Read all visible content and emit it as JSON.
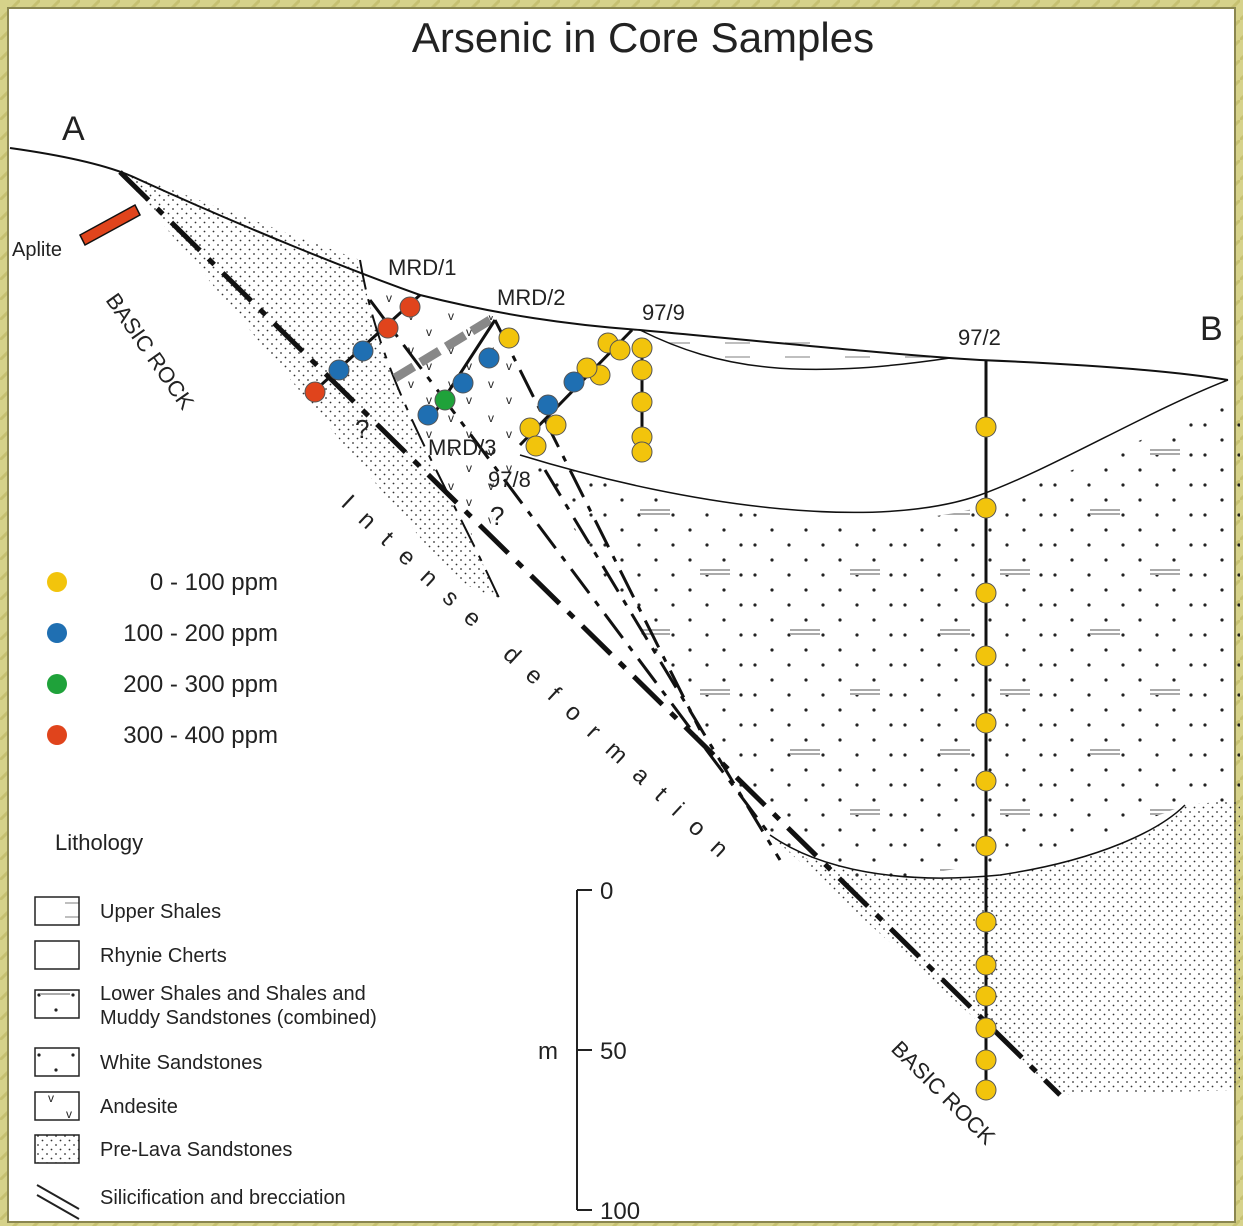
{
  "title": "Arsenic in Core Samples",
  "section": {
    "start": "A",
    "end": "B"
  },
  "rock_labels": {
    "aplite": "Aplite",
    "basic_rock_left": "BASIC ROCK",
    "basic_rock_right": "BASIC ROCK",
    "deformation": "Intense deformation"
  },
  "boreholes": [
    "MRD/1",
    "MRD/2",
    "MRD/3",
    "97/9",
    "97/8",
    "97/2"
  ],
  "uncertainty_marks": [
    "?",
    "?"
  ],
  "arsenic_legend": [
    {
      "label": "0 - 100 ppm",
      "color": "#f2c40c"
    },
    {
      "label": "100 - 200 ppm",
      "color": "#1f6fb2"
    },
    {
      "label": "200 - 300 ppm",
      "color": "#1fa23a"
    },
    {
      "label": "300 - 400 ppm",
      "color": "#e0441c"
    }
  ],
  "lithology": {
    "title": "Lithology",
    "items": [
      "Upper Shales",
      "Rhynie Cherts",
      "Lower Shales and Shales and\nMuddy Sandstones (combined)",
      "White Sandstones",
      "Andesite",
      "Pre-Lava Sandstones",
      "Silicification and brecciation"
    ]
  },
  "scale": {
    "unit": "m",
    "ticks": [
      0,
      50,
      100
    ]
  }
}
